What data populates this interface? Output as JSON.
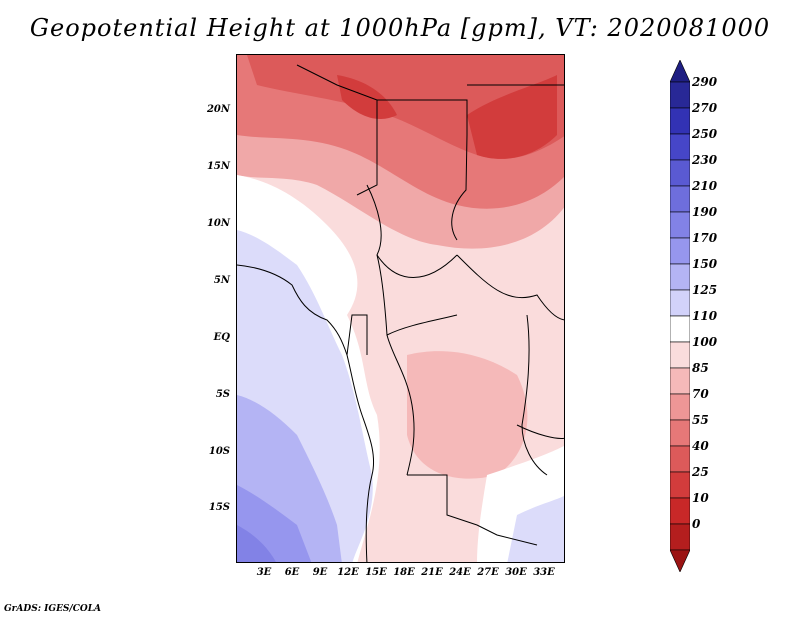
{
  "title": "Geopotential Height at 1000hPa [gpm], VT: 2020081000",
  "footer": "GrADS: IGES/COLA",
  "map": {
    "region": "Central Africa",
    "lat_labels": [
      "20N",
      "15N",
      "10N",
      "5N",
      "EQ",
      "5S",
      "10S",
      "15S"
    ],
    "lon_labels": [
      "3E",
      "6E",
      "9E",
      "12E",
      "15E",
      "18E",
      "21E",
      "24E",
      "27E",
      "30E",
      "33E"
    ],
    "lon_range": [
      0,
      35
    ],
    "lat_range": [
      -20,
      25
    ]
  },
  "colorbar": {
    "levels": [
      "290",
      "270",
      "250",
      "230",
      "210",
      "190",
      "170",
      "150",
      "125",
      "110",
      "100",
      "85",
      "70",
      "55",
      "40",
      "25",
      "10",
      "0"
    ],
    "colors": [
      "#282896",
      "#3232b4",
      "#4646c8",
      "#5a5ad2",
      "#6e6edc",
      "#8282e6",
      "#9696ee",
      "#b4b4f4",
      "#d2d2fa",
      "#ffffff",
      "#fadcdc",
      "#f5b9b9",
      "#ee9696",
      "#e67878",
      "#dc5a5a",
      "#d23c3c",
      "#c82828",
      "#b41e1e"
    ],
    "top_color": "#1e1e82",
    "bottom_color": "#9b1414"
  },
  "colors": {
    "low": "#d23c3c",
    "mid": "#f5b9b9",
    "neutral": "#ffffff",
    "high": "#b4b4f4"
  }
}
